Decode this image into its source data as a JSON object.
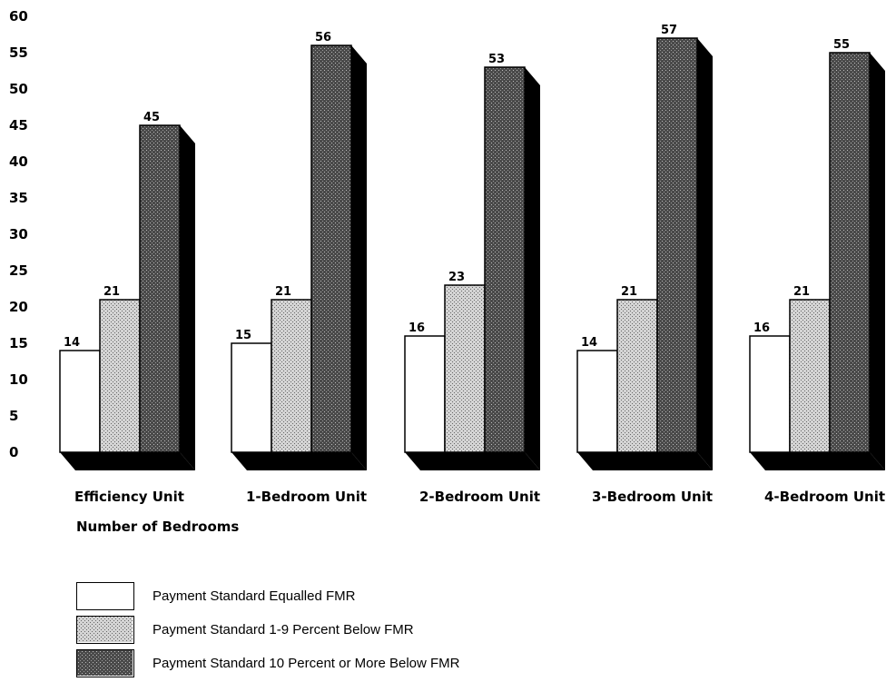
{
  "chart_data": {
    "type": "bar",
    "categories": [
      "Efficiency Unit",
      "1-Bedroom Unit",
      "2-Bedroom Unit",
      "3-Bedroom Unit",
      "4-Bedroom Unit"
    ],
    "series": [
      {
        "name": "Payment Standard Equalled FMR",
        "values": [
          14,
          15,
          16,
          14,
          16
        ],
        "color": "#ffffff",
        "pattern": "none"
      },
      {
        "name": "Payment Standard 1-9 Percent Below FMR",
        "values": [
          21,
          21,
          23,
          21,
          21
        ],
        "color": "#c8c8c8",
        "pattern": "light-stipple"
      },
      {
        "name": "Payment Standard 10 Percent or More Below FMR",
        "values": [
          45,
          56,
          53,
          57,
          55
        ],
        "color": "#555555",
        "pattern": "dark-stipple"
      }
    ],
    "yticks": [
      "0",
      "5",
      "10",
      "15",
      "20",
      "25",
      "30",
      "35",
      "40",
      "45",
      "50",
      "55",
      "60"
    ],
    "ylim": [
      0,
      60
    ],
    "xlabel": "Number of Bedrooms",
    "ylabel": "",
    "title": "",
    "legend_position": "bottom-left",
    "grid": false,
    "style": "3d"
  }
}
